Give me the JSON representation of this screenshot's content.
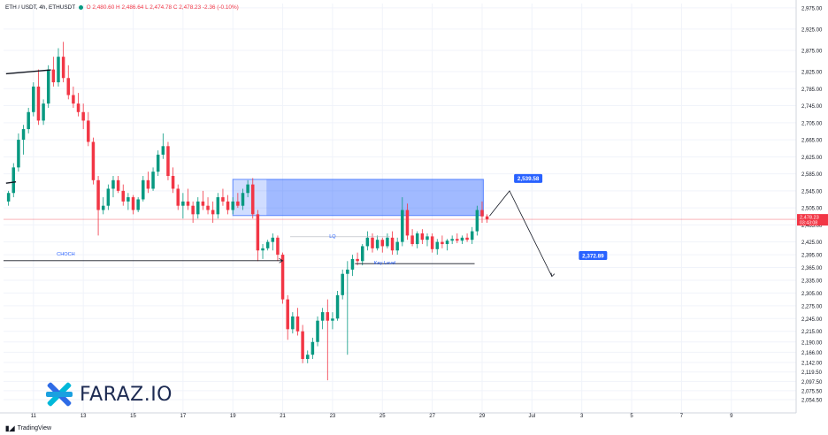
{
  "header": {
    "symbol": "ETH / USDT, 4h, ETHUSDT",
    "open": "O 2,480.60",
    "high": "H 2,486.64",
    "low": "L 2,474.78",
    "close": "C 2,478.23",
    "change": "-2.36 (-0.10%)"
  },
  "branding": {
    "logo_text": "FARAZ.IO",
    "platform": "TradingView"
  },
  "colors": {
    "up": "#089981",
    "down": "#f23645",
    "zone": "#2962ff",
    "label_blue": "#2962ff",
    "grid": "#f0f3fa"
  },
  "chart_data": {
    "type": "candlestick",
    "title": "",
    "xlabel": "",
    "ylabel": "",
    "ylim": [
      2040,
      2985
    ],
    "y_ticks": [
      "2,975.00",
      "2,925.00",
      "2,875.00",
      "2,825.00",
      "2,785.00",
      "2,745.00",
      "2,705.00",
      "2,665.00",
      "2,625.00",
      "2,585.00",
      "2,545.00",
      "2,505.00",
      "2,465.00",
      "2,425.00",
      "2,395.00",
      "2,365.00",
      "2,335.00",
      "2,305.00",
      "2,275.00",
      "2,245.00",
      "2,215.00",
      "2,190.00",
      "2,166.00",
      "2,142.00",
      "2,119.50",
      "2,097.50",
      "2,075.50",
      "2,054.50"
    ],
    "y_tick_values": [
      2975,
      2925,
      2875,
      2825,
      2785,
      2745,
      2705,
      2665,
      2625,
      2585,
      2545,
      2505,
      2465,
      2425,
      2395,
      2365,
      2335,
      2305,
      2275,
      2245,
      2215,
      2190,
      2166,
      2142,
      2119.5,
      2097.5,
      2075.5,
      2054.5
    ],
    "x_ticks": [
      "11",
      "13",
      "15",
      "17",
      "19",
      "21",
      "23",
      "25",
      "27",
      "29",
      "Jul",
      "3",
      "5",
      "7",
      "9"
    ],
    "x_tick_days": [
      11,
      13,
      15,
      17,
      19,
      21,
      23,
      25,
      27,
      29,
      31,
      33,
      35,
      37,
      39
    ],
    "x_range_days": [
      9.8,
      41.6
    ],
    "current_price": "2,478.23",
    "current_countdown": "03:43:08",
    "price_labels": [
      {
        "text": "2,539.58",
        "day": 30.85,
        "price": 2574
      },
      {
        "text": "2,372.89",
        "day": 33.45,
        "price": 2393
      }
    ],
    "annotations": [
      {
        "text": "CHOCH",
        "day": 12.3,
        "price": 2395
      },
      {
        "text": "LQ",
        "day": 23.0,
        "price": 2437
      },
      {
        "text": "Key Level",
        "day": 25.1,
        "price": 2374
      }
    ],
    "zones": [
      {
        "from_day": 19.0,
        "to_day": 29.05,
        "low": 2487,
        "high": 2572
      }
    ],
    "projection": [
      {
        "day": 29.3,
        "price": 2486
      },
      {
        "day": 30.1,
        "price": 2545
      },
      {
        "day": 31.8,
        "price": 2344
      }
    ],
    "candles": [
      [
        2520,
        2545,
        2510,
        2540
      ],
      [
        2540,
        2610,
        2530,
        2600
      ],
      [
        2600,
        2680,
        2590,
        2665
      ],
      [
        2665,
        2700,
        2630,
        2690
      ],
      [
        2690,
        2740,
        2680,
        2730
      ],
      [
        2730,
        2800,
        2720,
        2790
      ],
      [
        2790,
        2830,
        2700,
        2710
      ],
      [
        2710,
        2760,
        2700,
        2750
      ],
      [
        2750,
        2840,
        2740,
        2830
      ],
      [
        2830,
        2860,
        2790,
        2800
      ],
      [
        2800,
        2880,
        2790,
        2860
      ],
      [
        2860,
        2895,
        2800,
        2810
      ],
      [
        2810,
        2840,
        2760,
        2770
      ],
      [
        2770,
        2790,
        2740,
        2750
      ],
      [
        2750,
        2775,
        2720,
        2730
      ],
      [
        2730,
        2750,
        2690,
        2710
      ],
      [
        2710,
        2730,
        2650,
        2660
      ],
      [
        2660,
        2670,
        2560,
        2570
      ],
      [
        2570,
        2580,
        2440,
        2500
      ],
      [
        2500,
        2530,
        2490,
        2510
      ],
      [
        2510,
        2560,
        2500,
        2550
      ],
      [
        2550,
        2580,
        2530,
        2570
      ],
      [
        2570,
        2580,
        2540,
        2545
      ],
      [
        2545,
        2560,
        2510,
        2520
      ],
      [
        2520,
        2540,
        2500,
        2530
      ],
      [
        2530,
        2535,
        2490,
        2500
      ],
      [
        2500,
        2530,
        2495,
        2525
      ],
      [
        2525,
        2580,
        2520,
        2570
      ],
      [
        2570,
        2590,
        2540,
        2550
      ],
      [
        2550,
        2600,
        2545,
        2590
      ],
      [
        2590,
        2640,
        2580,
        2630
      ],
      [
        2630,
        2680,
        2620,
        2650
      ],
      [
        2650,
        2660,
        2570,
        2580
      ],
      [
        2580,
        2600,
        2540,
        2550
      ],
      [
        2550,
        2560,
        2500,
        2510
      ],
      [
        2510,
        2540,
        2480,
        2520
      ],
      [
        2520,
        2550,
        2500,
        2510
      ],
      [
        2510,
        2520,
        2470,
        2490
      ],
      [
        2490,
        2530,
        2480,
        2520
      ],
      [
        2520,
        2545,
        2500,
        2510
      ],
      [
        2510,
        2530,
        2490,
        2500
      ],
      [
        2500,
        2520,
        2470,
        2490
      ],
      [
        2490,
        2540,
        2480,
        2530
      ],
      [
        2530,
        2550,
        2510,
        2520
      ],
      [
        2520,
        2535,
        2490,
        2500
      ],
      [
        2500,
        2530,
        2490,
        2520
      ],
      [
        2520,
        2540,
        2505,
        2510
      ],
      [
        2510,
        2550,
        2500,
        2540
      ],
      [
        2540,
        2570,
        2530,
        2560
      ],
      [
        2560,
        2575,
        2480,
        2490
      ],
      [
        2490,
        2500,
        2380,
        2405
      ],
      [
        2405,
        2420,
        2385,
        2410
      ],
      [
        2410,
        2430,
        2405,
        2425
      ],
      [
        2425,
        2445,
        2405,
        2435
      ],
      [
        2435,
        2440,
        2380,
        2395
      ],
      [
        2395,
        2400,
        2280,
        2290
      ],
      [
        2290,
        2300,
        2195,
        2220
      ],
      [
        2220,
        2260,
        2210,
        2250
      ],
      [
        2250,
        2270,
        2205,
        2215
      ],
      [
        2215,
        2230,
        2140,
        2150
      ],
      [
        2150,
        2170,
        2140,
        2160
      ],
      [
        2160,
        2200,
        2150,
        2190
      ],
      [
        2190,
        2250,
        2180,
        2240
      ],
      [
        2240,
        2270,
        2220,
        2260
      ],
      [
        2260,
        2290,
        2100,
        2240
      ],
      [
        2240,
        2260,
        2220,
        2245
      ],
      [
        2245,
        2310,
        2240,
        2300
      ],
      [
        2300,
        2360,
        2290,
        2350
      ],
      [
        2350,
        2380,
        2160,
        2360
      ],
      [
        2360,
        2395,
        2345,
        2385
      ],
      [
        2385,
        2400,
        2370,
        2380
      ],
      [
        2380,
        2420,
        2370,
        2415
      ],
      [
        2415,
        2450,
        2405,
        2435
      ],
      [
        2435,
        2445,
        2400,
        2410
      ],
      [
        2410,
        2440,
        2405,
        2430
      ],
      [
        2430,
        2435,
        2400,
        2415
      ],
      [
        2415,
        2445,
        2410,
        2435
      ],
      [
        2435,
        2450,
        2395,
        2405
      ],
      [
        2405,
        2435,
        2395,
        2425
      ],
      [
        2425,
        2530,
        2415,
        2500
      ],
      [
        2500,
        2515,
        2430,
        2440
      ],
      [
        2440,
        2455,
        2415,
        2420
      ],
      [
        2420,
        2450,
        2410,
        2445
      ],
      [
        2445,
        2455,
        2420,
        2430
      ],
      [
        2430,
        2445,
        2415,
        2438
      ],
      [
        2438,
        2445,
        2400,
        2408
      ],
      [
        2408,
        2432,
        2395,
        2425
      ],
      [
        2425,
        2440,
        2410,
        2420
      ],
      [
        2420,
        2432,
        2405,
        2428
      ],
      [
        2428,
        2440,
        2420,
        2432
      ],
      [
        2432,
        2445,
        2422,
        2428
      ],
      [
        2428,
        2440,
        2420,
        2435
      ],
      [
        2435,
        2445,
        2425,
        2430
      ],
      [
        2430,
        2460,
        2420,
        2450
      ],
      [
        2450,
        2510,
        2440,
        2500
      ],
      [
        2500,
        2520,
        2470,
        2485
      ],
      [
        2485,
        2490,
        2470,
        2478
      ]
    ]
  }
}
